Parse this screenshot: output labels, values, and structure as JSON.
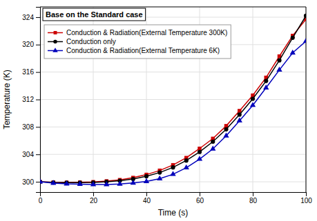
{
  "chart_data": {
    "type": "line",
    "title": "Base on the Standard case",
    "xlabel": "Time (s)",
    "ylabel": "Temperature (K)",
    "x": [
      0,
      5,
      10,
      15,
      20,
      25,
      30,
      35,
      40,
      45,
      50,
      55,
      60,
      65,
      70,
      75,
      80,
      85,
      90,
      95,
      100
    ],
    "series": [
      {
        "name": "Conduction & Radiation(External Temperature 300K)",
        "color": "#cc0000",
        "marker": "square",
        "values": [
          300.0,
          299.92,
          299.9,
          299.92,
          299.98,
          300.1,
          300.28,
          300.6,
          301.05,
          301.65,
          302.45,
          303.5,
          304.85,
          306.3,
          308.15,
          310.35,
          312.6,
          315.2,
          318.3,
          321.3,
          323.7
        ]
      },
      {
        "name": "Conduction only",
        "color": "#000000",
        "marker": "circle",
        "values": [
          300.0,
          299.9,
          299.88,
          299.87,
          299.9,
          300.0,
          300.15,
          300.4,
          300.8,
          301.35,
          302.1,
          303.1,
          304.35,
          305.85,
          307.65,
          309.8,
          312.1,
          314.7,
          317.7,
          321.0,
          324.2
        ]
      },
      {
        "name": "Conduction & Radiation(External Temperature 6K)",
        "color": "#0000bb",
        "marker": "triangle",
        "values": [
          300.0,
          299.8,
          299.7,
          299.65,
          299.6,
          299.6,
          299.68,
          299.82,
          300.05,
          300.45,
          301.1,
          302.05,
          303.3,
          304.8,
          306.7,
          308.9,
          311.15,
          313.7,
          316.3,
          318.8,
          320.5
        ]
      }
    ],
    "xlim": [
      0,
      100
    ],
    "ylim": [
      298.5,
      325.5
    ],
    "xticks": [
      0,
      20,
      40,
      60,
      80,
      100
    ],
    "yticks": [
      300,
      304,
      308,
      312,
      316,
      320,
      324
    ],
    "grid": true,
    "legend": "upper left"
  }
}
